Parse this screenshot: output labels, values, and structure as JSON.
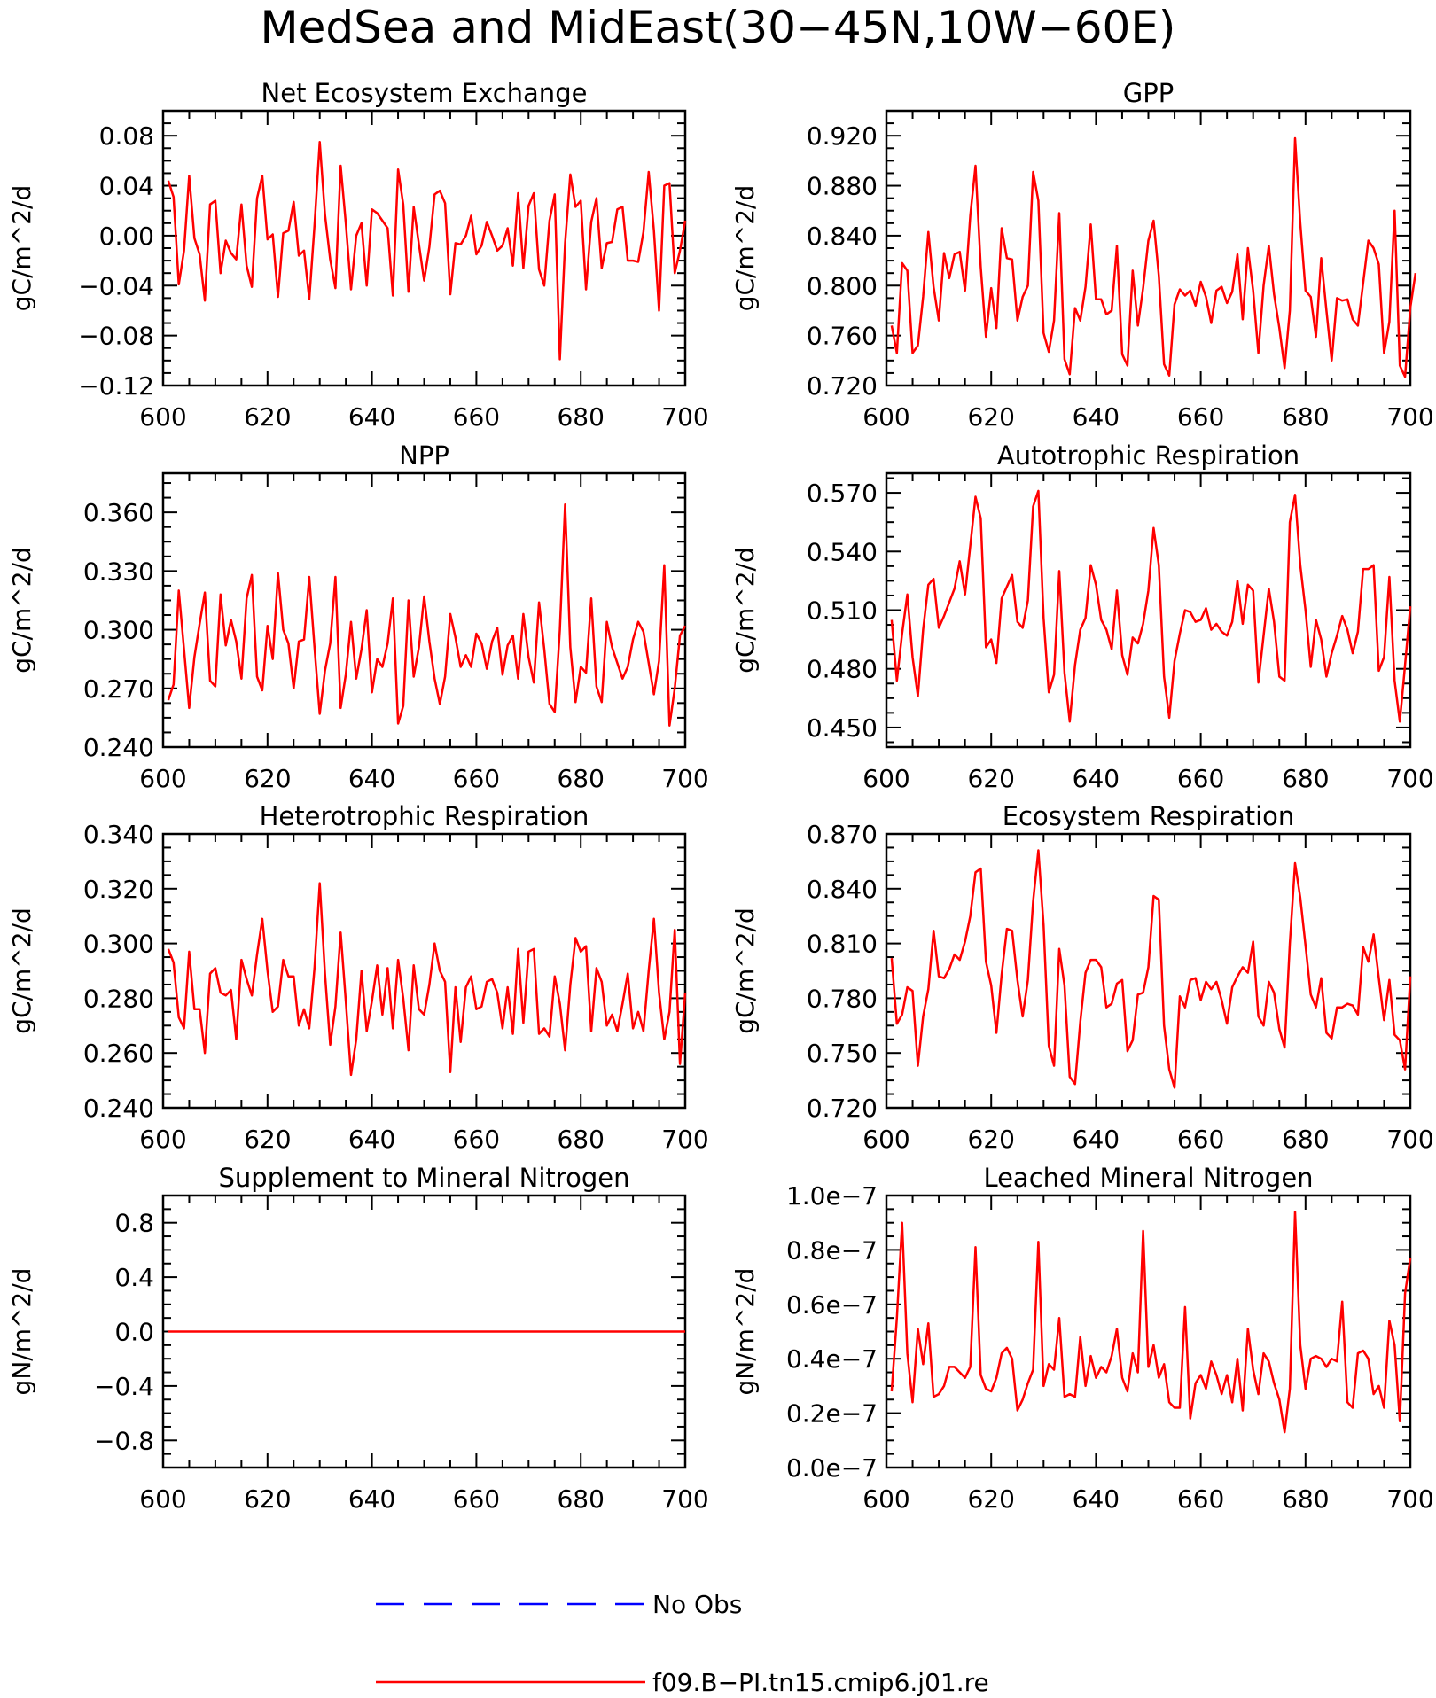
{
  "figure": {
    "title": "MedSea and MidEast(30−45N,10W−60E)",
    "series_color": "#ff0000",
    "obs_color": "#0000ff"
  },
  "legend": [
    {
      "label": "No Obs",
      "style": "dashed",
      "color": "#0000ff"
    },
    {
      "label": "f09.B−PI.tn15.cmip6.j01.re",
      "style": "solid",
      "color": "#ff0000"
    }
  ],
  "chart_data": [
    {
      "type": "line",
      "title": "Net Ecosystem Exchange",
      "ylabel": "gC/m^2/d",
      "xlim": [
        600,
        700
      ],
      "ylim": [
        -0.12,
        0.1
      ],
      "yticks": [
        -0.12,
        -0.08,
        -0.04,
        0.0,
        0.04,
        0.08
      ],
      "ytick_labels": [
        "−0.12",
        "−0.08",
        "−0.04",
        "0.00",
        "0.04",
        "0.08"
      ],
      "xticks": [
        600,
        620,
        640,
        660,
        680,
        700
      ],
      "xtick_labels": [
        "600",
        "620",
        "640",
        "660",
        "680",
        "700"
      ],
      "x_start": 601,
      "values": [
        0.044,
        0.031,
        -0.039,
        -0.012,
        0.048,
        -0.002,
        -0.015,
        -0.052,
        0.025,
        0.028,
        -0.03,
        -0.004,
        -0.014,
        -0.019,
        0.025,
        -0.024,
        -0.041,
        0.03,
        0.048,
        -0.003,
        0.001,
        -0.049,
        0.002,
        0.004,
        0.027,
        -0.016,
        -0.012,
        -0.051,
        0.008,
        0.075,
        0.017,
        -0.019,
        -0.042,
        0.056,
        0.01,
        -0.043,
        0.0,
        0.01,
        -0.04,
        0.021,
        0.018,
        0.012,
        0.006,
        -0.048,
        0.053,
        0.025,
        -0.045,
        0.023,
        -0.007,
        -0.036,
        -0.009,
        0.033,
        0.036,
        0.026,
        -0.047,
        -0.006,
        -0.007,
        0.0,
        0.016,
        -0.015,
        -0.008,
        0.011,
        0.0,
        -0.012,
        -0.008,
        0.006,
        -0.024,
        0.034,
        -0.026,
        0.024,
        0.034,
        -0.027,
        -0.04,
        0.012,
        0.033,
        -0.099,
        -0.006,
        0.049,
        0.023,
        0.028,
        -0.043,
        0.011,
        0.03,
        -0.026,
        -0.006,
        -0.005,
        0.021,
        0.023,
        -0.02,
        -0.02,
        -0.021,
        0.003,
        0.051,
        0.004,
        -0.06,
        0.04,
        0.042,
        -0.03,
        -0.012,
        0.012
      ]
    },
    {
      "type": "line",
      "title": "GPP",
      "ylabel": "gC/m^2/d",
      "xlim": [
        600,
        700
      ],
      "ylim": [
        0.72,
        0.94
      ],
      "yticks": [
        0.72,
        0.76,
        0.8,
        0.84,
        0.88,
        0.92
      ],
      "ytick_labels": [
        "0.720",
        "0.760",
        "0.800",
        "0.840",
        "0.880",
        "0.920"
      ],
      "xticks": [
        600,
        620,
        640,
        660,
        680,
        700
      ],
      "xtick_labels": [
        "600",
        "620",
        "640",
        "660",
        "680",
        "700"
      ],
      "x_start": 601,
      "values": [
        0.768,
        0.746,
        0.818,
        0.812,
        0.746,
        0.752,
        0.791,
        0.843,
        0.799,
        0.772,
        0.826,
        0.806,
        0.825,
        0.827,
        0.796,
        0.856,
        0.896,
        0.815,
        0.759,
        0.798,
        0.766,
        0.846,
        0.822,
        0.821,
        0.772,
        0.791,
        0.8,
        0.891,
        0.868,
        0.762,
        0.747,
        0.772,
        0.858,
        0.741,
        0.729,
        0.782,
        0.772,
        0.799,
        0.849,
        0.789,
        0.789,
        0.777,
        0.78,
        0.832,
        0.745,
        0.736,
        0.812,
        0.768,
        0.798,
        0.836,
        0.852,
        0.808,
        0.737,
        0.728,
        0.785,
        0.797,
        0.792,
        0.796,
        0.784,
        0.803,
        0.791,
        0.77,
        0.796,
        0.799,
        0.786,
        0.795,
        0.825,
        0.773,
        0.83,
        0.796,
        0.746,
        0.8,
        0.832,
        0.793,
        0.766,
        0.734,
        0.78,
        0.918,
        0.85,
        0.796,
        0.791,
        0.759,
        0.822,
        0.78,
        0.74,
        0.79,
        0.788,
        0.789,
        0.773,
        0.768,
        0.802,
        0.836,
        0.83,
        0.817,
        0.746,
        0.771,
        0.86,
        0.736,
        0.727,
        0.782,
        0.81
      ]
    },
    {
      "type": "line",
      "title": "NPP",
      "ylabel": "gC/m^2/d",
      "xlim": [
        600,
        700
      ],
      "ylim": [
        0.24,
        0.38
      ],
      "yticks": [
        0.24,
        0.27,
        0.3,
        0.33,
        0.36
      ],
      "ytick_labels": [
        "0.240",
        "0.270",
        "0.300",
        "0.330",
        "0.360"
      ],
      "xticks": [
        600,
        620,
        640,
        660,
        680,
        700
      ],
      "xtick_labels": [
        "600",
        "620",
        "640",
        "660",
        "680",
        "700"
      ],
      "x_start": 601,
      "values": [
        0.264,
        0.272,
        0.32,
        0.29,
        0.26,
        0.286,
        0.303,
        0.319,
        0.274,
        0.271,
        0.318,
        0.292,
        0.305,
        0.294,
        0.275,
        0.316,
        0.328,
        0.276,
        0.269,
        0.302,
        0.285,
        0.329,
        0.3,
        0.293,
        0.27,
        0.294,
        0.295,
        0.327,
        0.291,
        0.257,
        0.279,
        0.293,
        0.327,
        0.26,
        0.277,
        0.304,
        0.275,
        0.29,
        0.31,
        0.268,
        0.285,
        0.281,
        0.293,
        0.316,
        0.252,
        0.261,
        0.315,
        0.276,
        0.291,
        0.317,
        0.294,
        0.275,
        0.262,
        0.276,
        0.308,
        0.296,
        0.281,
        0.287,
        0.281,
        0.298,
        0.293,
        0.28,
        0.294,
        0.301,
        0.277,
        0.292,
        0.297,
        0.275,
        0.308,
        0.286,
        0.273,
        0.314,
        0.29,
        0.262,
        0.258,
        0.3,
        0.364,
        0.291,
        0.263,
        0.281,
        0.278,
        0.316,
        0.271,
        0.263,
        0.304,
        0.291,
        0.283,
        0.275,
        0.281,
        0.295,
        0.304,
        0.299,
        0.283,
        0.267,
        0.284,
        0.333,
        0.251,
        0.27,
        0.297,
        0.302
      ]
    },
    {
      "type": "line",
      "title": "Autotrophic Respiration",
      "ylabel": "gC/m^2/d",
      "xlim": [
        600,
        700
      ],
      "ylim": [
        0.44,
        0.58
      ],
      "yticks": [
        0.45,
        0.48,
        0.51,
        0.54,
        0.57
      ],
      "ytick_labels": [
        "0.450",
        "0.480",
        "0.510",
        "0.540",
        "0.570"
      ],
      "xticks": [
        600,
        620,
        640,
        660,
        680,
        700
      ],
      "xtick_labels": [
        "600",
        "620",
        "640",
        "660",
        "680",
        "700"
      ],
      "x_start": 601,
      "values": [
        0.505,
        0.474,
        0.498,
        0.518,
        0.486,
        0.466,
        0.5,
        0.523,
        0.526,
        0.501,
        0.507,
        0.514,
        0.521,
        0.535,
        0.518,
        0.543,
        0.568,
        0.557,
        0.491,
        0.495,
        0.483,
        0.516,
        0.522,
        0.528,
        0.504,
        0.501,
        0.515,
        0.563,
        0.571,
        0.506,
        0.468,
        0.477,
        0.53,
        0.478,
        0.453,
        0.482,
        0.5,
        0.506,
        0.533,
        0.523,
        0.505,
        0.5,
        0.49,
        0.52,
        0.487,
        0.477,
        0.496,
        0.493,
        0.503,
        0.52,
        0.552,
        0.533,
        0.476,
        0.455,
        0.484,
        0.498,
        0.51,
        0.509,
        0.504,
        0.505,
        0.511,
        0.5,
        0.503,
        0.499,
        0.497,
        0.504,
        0.525,
        0.503,
        0.523,
        0.52,
        0.473,
        0.497,
        0.521,
        0.504,
        0.476,
        0.474,
        0.555,
        0.569,
        0.533,
        0.51,
        0.481,
        0.505,
        0.495,
        0.476,
        0.488,
        0.497,
        0.507,
        0.5,
        0.488,
        0.499,
        0.531,
        0.531,
        0.533,
        0.479,
        0.486,
        0.527,
        0.474,
        0.453,
        0.482,
        0.512
      ]
    },
    {
      "type": "line",
      "title": "Heterotrophic Respiration",
      "ylabel": "gC/m^2/d",
      "xlim": [
        600,
        700
      ],
      "ylim": [
        0.24,
        0.34
      ],
      "yticks": [
        0.24,
        0.26,
        0.28,
        0.3,
        0.32,
        0.34
      ],
      "ytick_labels": [
        "0.240",
        "0.260",
        "0.280",
        "0.300",
        "0.320",
        "0.340"
      ],
      "xticks": [
        600,
        620,
        640,
        660,
        680,
        700
      ],
      "xtick_labels": [
        "600",
        "620",
        "640",
        "660",
        "680",
        "700"
      ],
      "x_start": 601,
      "values": [
        0.298,
        0.293,
        0.273,
        0.269,
        0.297,
        0.276,
        0.276,
        0.26,
        0.289,
        0.291,
        0.282,
        0.281,
        0.283,
        0.265,
        0.294,
        0.287,
        0.281,
        0.296,
        0.309,
        0.29,
        0.275,
        0.277,
        0.294,
        0.288,
        0.288,
        0.27,
        0.276,
        0.269,
        0.291,
        0.322,
        0.289,
        0.263,
        0.277,
        0.304,
        0.279,
        0.252,
        0.265,
        0.29,
        0.268,
        0.279,
        0.292,
        0.274,
        0.291,
        0.269,
        0.294,
        0.28,
        0.261,
        0.292,
        0.276,
        0.274,
        0.285,
        0.3,
        0.29,
        0.286,
        0.253,
        0.284,
        0.264,
        0.284,
        0.288,
        0.276,
        0.277,
        0.286,
        0.287,
        0.282,
        0.269,
        0.284,
        0.267,
        0.298,
        0.271,
        0.297,
        0.298,
        0.267,
        0.269,
        0.266,
        0.288,
        0.278,
        0.261,
        0.285,
        0.302,
        0.297,
        0.299,
        0.268,
        0.291,
        0.286,
        0.27,
        0.274,
        0.268,
        0.278,
        0.289,
        0.269,
        0.275,
        0.268,
        0.29,
        0.309,
        0.282,
        0.265,
        0.275,
        0.305,
        0.256,
        0.282
      ]
    },
    {
      "type": "line",
      "title": "Ecosystem Respiration",
      "ylabel": "gC/m^2/d",
      "xlim": [
        600,
        700
      ],
      "ylim": [
        0.72,
        0.87
      ],
      "yticks": [
        0.72,
        0.75,
        0.78,
        0.81,
        0.84,
        0.87
      ],
      "ytick_labels": [
        "0.720",
        "0.750",
        "0.780",
        "0.810",
        "0.840",
        "0.870"
      ],
      "xticks": [
        600,
        620,
        640,
        660,
        680,
        700
      ],
      "xtick_labels": [
        "600",
        "620",
        "640",
        "660",
        "680",
        "700"
      ],
      "x_start": 601,
      "values": [
        0.802,
        0.766,
        0.771,
        0.786,
        0.784,
        0.743,
        0.77,
        0.785,
        0.817,
        0.792,
        0.791,
        0.796,
        0.804,
        0.801,
        0.811,
        0.825,
        0.849,
        0.851,
        0.8,
        0.787,
        0.761,
        0.793,
        0.818,
        0.817,
        0.79,
        0.77,
        0.79,
        0.833,
        0.861,
        0.82,
        0.754,
        0.743,
        0.807,
        0.787,
        0.737,
        0.733,
        0.767,
        0.794,
        0.801,
        0.801,
        0.797,
        0.775,
        0.777,
        0.788,
        0.79,
        0.751,
        0.757,
        0.782,
        0.783,
        0.797,
        0.836,
        0.834,
        0.765,
        0.741,
        0.731,
        0.781,
        0.775,
        0.79,
        0.791,
        0.779,
        0.789,
        0.785,
        0.789,
        0.779,
        0.766,
        0.786,
        0.792,
        0.797,
        0.794,
        0.811,
        0.77,
        0.765,
        0.789,
        0.783,
        0.763,
        0.753,
        0.81,
        0.854,
        0.835,
        0.809,
        0.782,
        0.775,
        0.791,
        0.761,
        0.758,
        0.775,
        0.775,
        0.777,
        0.776,
        0.771,
        0.808,
        0.8,
        0.815,
        0.791,
        0.768,
        0.79,
        0.76,
        0.757,
        0.741,
        0.792
      ]
    },
    {
      "type": "line",
      "title": "Supplement to Mineral Nitrogen",
      "ylabel": "gN/m^2/d",
      "xlim": [
        600,
        700
      ],
      "ylim": [
        -1.0,
        1.0
      ],
      "yticks": [
        -0.8,
        -0.4,
        0.0,
        0.4,
        0.8
      ],
      "ytick_labels": [
        "−0.8",
        "−0.4",
        "0.0",
        "0.4",
        "0.8"
      ],
      "xticks": [
        600,
        620,
        640,
        660,
        680,
        700
      ],
      "xtick_labels": [
        "600",
        "620",
        "640",
        "660",
        "680",
        "700"
      ],
      "x_start": 601,
      "values": [
        0,
        0
      ]
    },
    {
      "type": "line",
      "title": "Leached Mineral Nitrogen",
      "ylabel": "gN/m^2/d",
      "xlim": [
        600,
        700
      ],
      "ylim": [
        0.0,
        1.0
      ],
      "yticks": [
        0.0,
        0.2,
        0.4,
        0.6,
        0.8,
        1.0
      ],
      "ytick_labels": [
        "0.0e−7",
        "0.2e−7",
        "0.4e−7",
        "0.6e−7",
        "0.8e−7",
        "1.0e−7"
      ],
      "xticks": [
        600,
        620,
        640,
        660,
        680,
        700
      ],
      "xtick_labels": [
        "600",
        "620",
        "640",
        "660",
        "680",
        "700"
      ],
      "x_start": 601,
      "values": [
        0.28,
        0.55,
        0.9,
        0.42,
        0.24,
        0.51,
        0.38,
        0.53,
        0.26,
        0.27,
        0.3,
        0.37,
        0.37,
        0.35,
        0.33,
        0.37,
        0.81,
        0.34,
        0.29,
        0.28,
        0.33,
        0.42,
        0.44,
        0.4,
        0.21,
        0.25,
        0.31,
        0.36,
        0.83,
        0.3,
        0.38,
        0.36,
        0.55,
        0.26,
        0.27,
        0.26,
        0.48,
        0.3,
        0.41,
        0.33,
        0.37,
        0.35,
        0.41,
        0.51,
        0.33,
        0.28,
        0.42,
        0.35,
        0.87,
        0.37,
        0.45,
        0.33,
        0.38,
        0.24,
        0.22,
        0.22,
        0.59,
        0.18,
        0.31,
        0.34,
        0.29,
        0.39,
        0.34,
        0.27,
        0.34,
        0.24,
        0.4,
        0.21,
        0.51,
        0.36,
        0.27,
        0.42,
        0.39,
        0.31,
        0.25,
        0.13,
        0.29,
        0.94,
        0.45,
        0.29,
        0.4,
        0.41,
        0.4,
        0.37,
        0.4,
        0.39,
        0.61,
        0.24,
        0.22,
        0.42,
        0.43,
        0.4,
        0.27,
        0.3,
        0.22,
        0.54,
        0.45,
        0.17,
        0.64,
        0.77
      ]
    }
  ]
}
